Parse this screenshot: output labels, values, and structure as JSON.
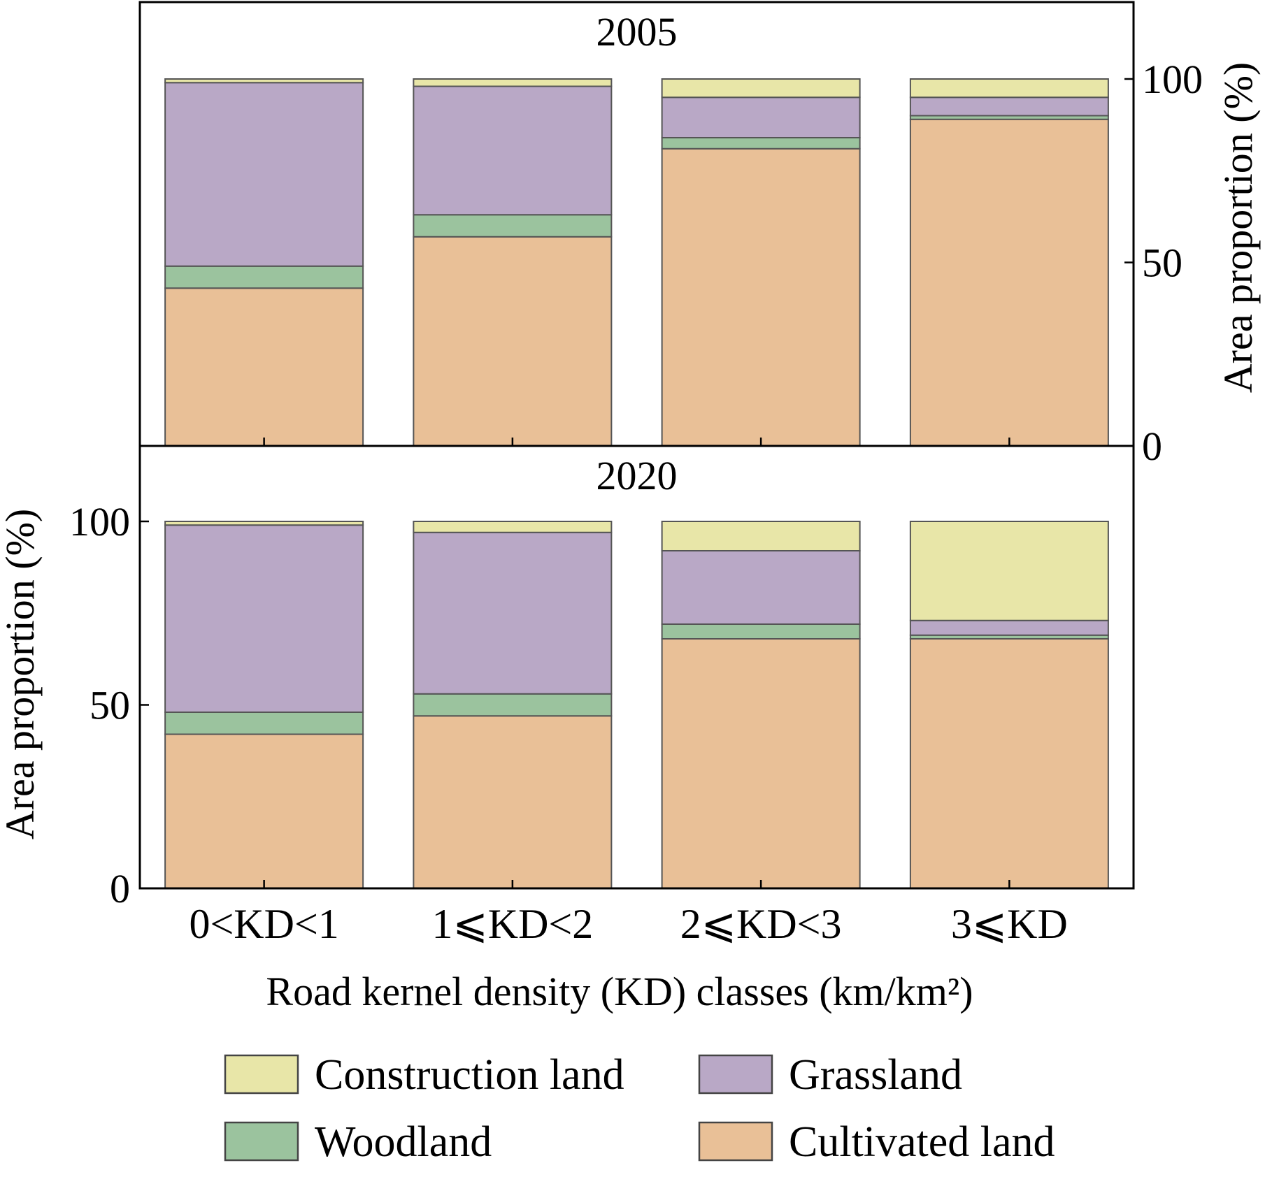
{
  "chart_data": {
    "type": "bar",
    "stacked": true,
    "xlabel": "Road kernel density (KD) classes (km/km²)",
    "ylabel": "Area proportion (%)",
    "ylim": [
      0,
      120
    ],
    "yticks": [
      0,
      50,
      100
    ],
    "categories": [
      "0<KD<1",
      "1⩽KD<2",
      "2⩽KD<3",
      "3⩽KD"
    ],
    "panels": [
      {
        "title": "2005",
        "y_axis_side": "right",
        "series": [
          {
            "name": "Cultivated land",
            "values": [
              43,
              57,
              81,
              89
            ]
          },
          {
            "name": "Woodland",
            "values": [
              6,
              6,
              3,
              1
            ]
          },
          {
            "name": "Grassland",
            "values": [
              50,
              35,
              11,
              5
            ]
          },
          {
            "name": "Construction land",
            "values": [
              1,
              2,
              5,
              5
            ]
          }
        ]
      },
      {
        "title": "2020",
        "y_axis_side": "left",
        "series": [
          {
            "name": "Cultivated land",
            "values": [
              42,
              47,
              68,
              68
            ]
          },
          {
            "name": "Woodland",
            "values": [
              6,
              6,
              4,
              1
            ]
          },
          {
            "name": "Grassland",
            "values": [
              51,
              44,
              20,
              4
            ]
          },
          {
            "name": "Construction land",
            "values": [
              1,
              3,
              8,
              27
            ]
          }
        ]
      }
    ],
    "legend": {
      "position": "bottom",
      "entries": [
        "Construction land",
        "Grassland",
        "Woodland",
        "Cultivated land"
      ]
    },
    "colors": {
      "Cultivated land": "#e9c097",
      "Woodland": "#9bc39e",
      "Grassland": "#b9a8c6",
      "Construction land": "#e8e6a8"
    },
    "grid": false
  }
}
